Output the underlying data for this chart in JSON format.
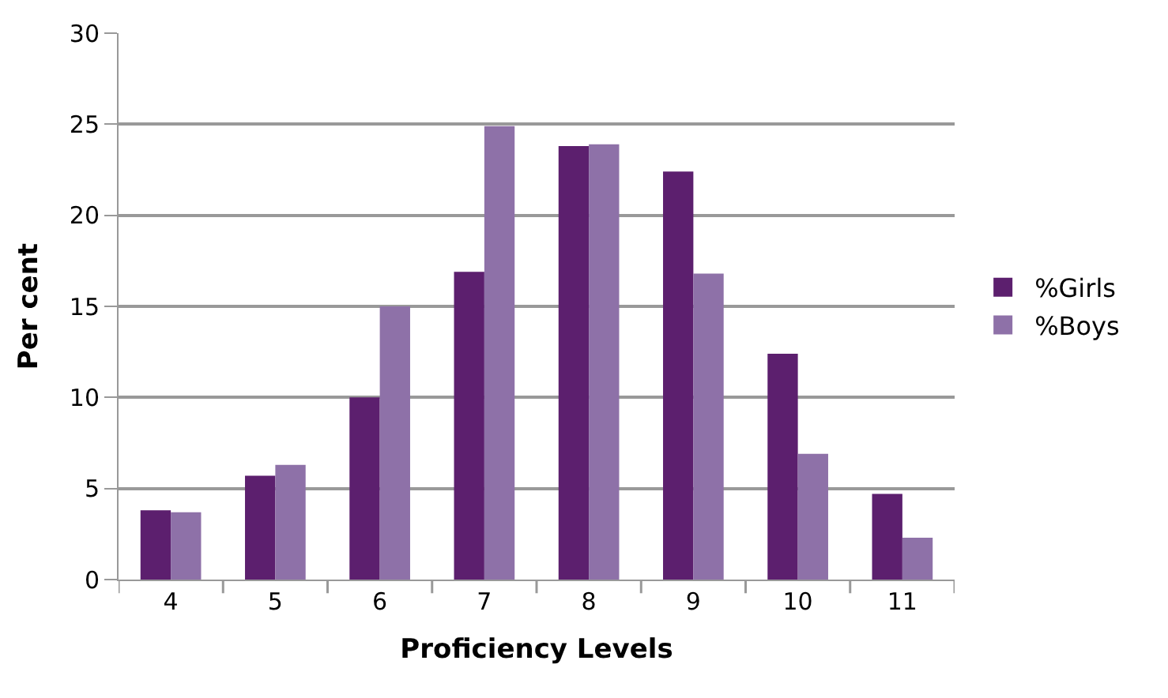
{
  "chart_data": {
    "type": "bar",
    "categories": [
      "4",
      "5",
      "6",
      "7",
      "8",
      "9",
      "10",
      "11"
    ],
    "series": [
      {
        "name": "%Girls",
        "color": "#5c1f6e",
        "values": [
          3.8,
          5.7,
          10.0,
          16.9,
          23.8,
          22.4,
          12.4,
          4.7
        ]
      },
      {
        "name": "%Boys",
        "color": "#8e71a8",
        "values": [
          3.7,
          6.3,
          15.0,
          24.9,
          23.9,
          16.8,
          6.9,
          2.3
        ]
      }
    ],
    "xlabel": "Proficiency Levels",
    "ylabel": "Per cent",
    "ylim": [
      0,
      30
    ],
    "yticks": [
      0,
      5,
      10,
      15,
      20,
      25,
      30
    ],
    "grid": "y",
    "legend": "right"
  }
}
